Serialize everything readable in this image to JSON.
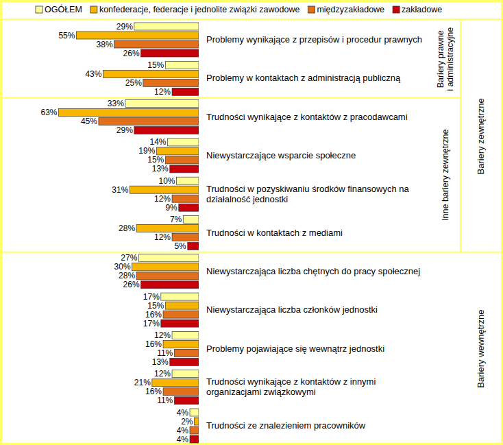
{
  "chart_data": {
    "type": "bar",
    "orientation": "horizontal",
    "data_labels": true,
    "tick_labels": "y",
    "grid": false,
    "legend": "top",
    "xlim": [
      0,
      65
    ],
    "xticks": [],
    "categories": [
      "Problemy wynikające z przepisów i procedur prawnych",
      "Problemy w kontaktach z administracją publiczną",
      "Trudności wynikające z kontaktów  z pracodawcami",
      "Niewystarczające wsparcie społeczne",
      "Trudności w pozyskiwaniu środków finansowych na\ndziałalność jednostki",
      "Trudności w kontaktach z mediami",
      "Niewystarczająca liczba chętnych do pracy społecznej",
      "Niewystarczająca liczba członków jednostki",
      "Problemy pojawiające się wewnątrz jednostki",
      "Trudności wynikające z kontaktów z innymi\norganizacjami związkowymi",
      "Trudności ze znalezieniem pracowników"
    ],
    "category_groups": [
      {
        "label": "Bariery zewnętrzne",
        "size": 6,
        "groups": [
          {
            "label": "Bariery prawne\ni administracyjne",
            "size": 2
          },
          {
            "label": "Inne bariery zewnętrzne",
            "size": 4
          }
        ]
      },
      {
        "label": "Bariery wewnętrzne",
        "size": 5
      }
    ],
    "series": [
      {
        "name": "OGÓŁEM",
        "color": "#ffff99",
        "values": [
          29,
          15,
          33,
          14,
          10,
          7,
          27,
          17,
          12,
          12,
          4
        ],
        "value_labels": [
          "29%",
          "15%",
          "33%",
          "14%",
          "10%",
          "7%",
          "27%",
          "17%",
          "12%",
          "12%",
          "4%"
        ]
      },
      {
        "name": "konfederacje, federacje i jednolite związki zawodowe",
        "color": "#f7b500",
        "values": [
          55,
          43,
          63,
          19,
          31,
          28,
          30,
          15,
          16,
          21,
          2
        ],
        "value_labels": [
          "55%",
          "43%",
          "63%",
          "19%",
          "31%",
          "28%",
          "30%",
          "15%",
          "16%",
          "21%",
          "2%"
        ]
      },
      {
        "name": "międzyzakładowe",
        "color": "#e2701a",
        "values": [
          38,
          25,
          45,
          15,
          12,
          12,
          28,
          16,
          11,
          16,
          4
        ],
        "value_labels": [
          "38%",
          "25%",
          "45%",
          "15%",
          "12%",
          "12%",
          "28%",
          "16%",
          "11%",
          "16%",
          "4%"
        ]
      },
      {
        "name": "zakładowe",
        "color": "#c8000a",
        "values": [
          26,
          12,
          29,
          13,
          9,
          5,
          26,
          17,
          13,
          11,
          4
        ],
        "value_labels": [
          "26%",
          "12%",
          "29%",
          "13%",
          "9%",
          "5%",
          "26%",
          "17%",
          "13%",
          "11%",
          "4%"
        ]
      }
    ]
  }
}
